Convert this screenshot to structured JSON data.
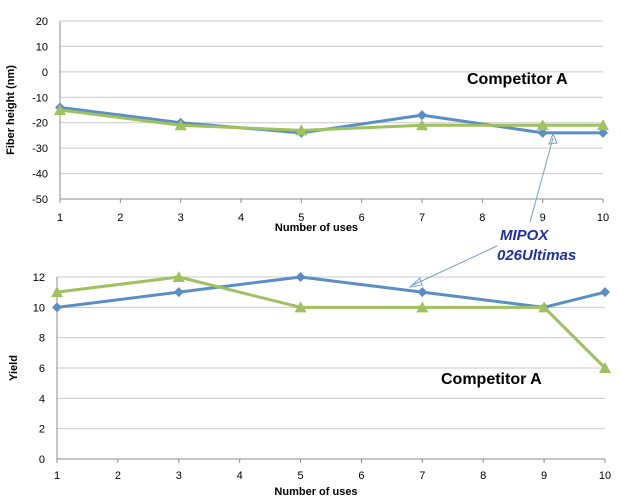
{
  "chart_data": [
    {
      "type": "line",
      "ylabel": "Fiber height (nm)",
      "xlabel": "Number of uses",
      "x_ticks": [
        1,
        2,
        3,
        4,
        5,
        6,
        7,
        8,
        9,
        10
      ],
      "y_ticks": [
        20,
        10,
        0,
        -10,
        -20,
        -30,
        -40,
        -50
      ],
      "ylim": [
        -50,
        20
      ],
      "xlim": [
        1,
        10
      ],
      "grid": "horizontal",
      "series": [
        {
          "key": "mipox",
          "color": "#5b8ec5",
          "marker": "diamond",
          "x": [
            1,
            3,
            5,
            7,
            9,
            10
          ],
          "y": [
            -14,
            -20,
            -24,
            -17,
            -24,
            -24
          ]
        },
        {
          "key": "competitor",
          "color": "#9fc15f",
          "marker": "triangle",
          "x": [
            1,
            3,
            5,
            7,
            9,
            10
          ],
          "y": [
            -15,
            -21,
            -23,
            -21,
            -21,
            -21
          ]
        }
      ],
      "annotation": "Competitor A"
    },
    {
      "type": "line",
      "ylabel": "Yield",
      "xlabel": "Number of uses",
      "x_ticks": [
        1,
        2,
        3,
        4,
        5,
        6,
        7,
        8,
        9,
        10
      ],
      "y_ticks": [
        12,
        10,
        8,
        6,
        4,
        2,
        0
      ],
      "ylim": [
        0,
        12
      ],
      "xlim": [
        1,
        10
      ],
      "grid": "horizontal",
      "series": [
        {
          "key": "mipox",
          "color": "#5b8ec5",
          "marker": "diamond",
          "x": [
            1,
            3,
            5,
            7,
            9,
            10
          ],
          "y": [
            10,
            11,
            12,
            11,
            10,
            11
          ]
        },
        {
          "key": "competitor",
          "color": "#9fc15f",
          "marker": "triangle",
          "x": [
            1,
            3,
            5,
            7,
            9,
            10
          ],
          "y": [
            11,
            12,
            10,
            10,
            10,
            6
          ]
        }
      ],
      "annotation": "Competitor A"
    }
  ],
  "callout": {
    "line1": "MIPOX",
    "line2": "026Ultimas",
    "color": "#1f2fa8"
  }
}
